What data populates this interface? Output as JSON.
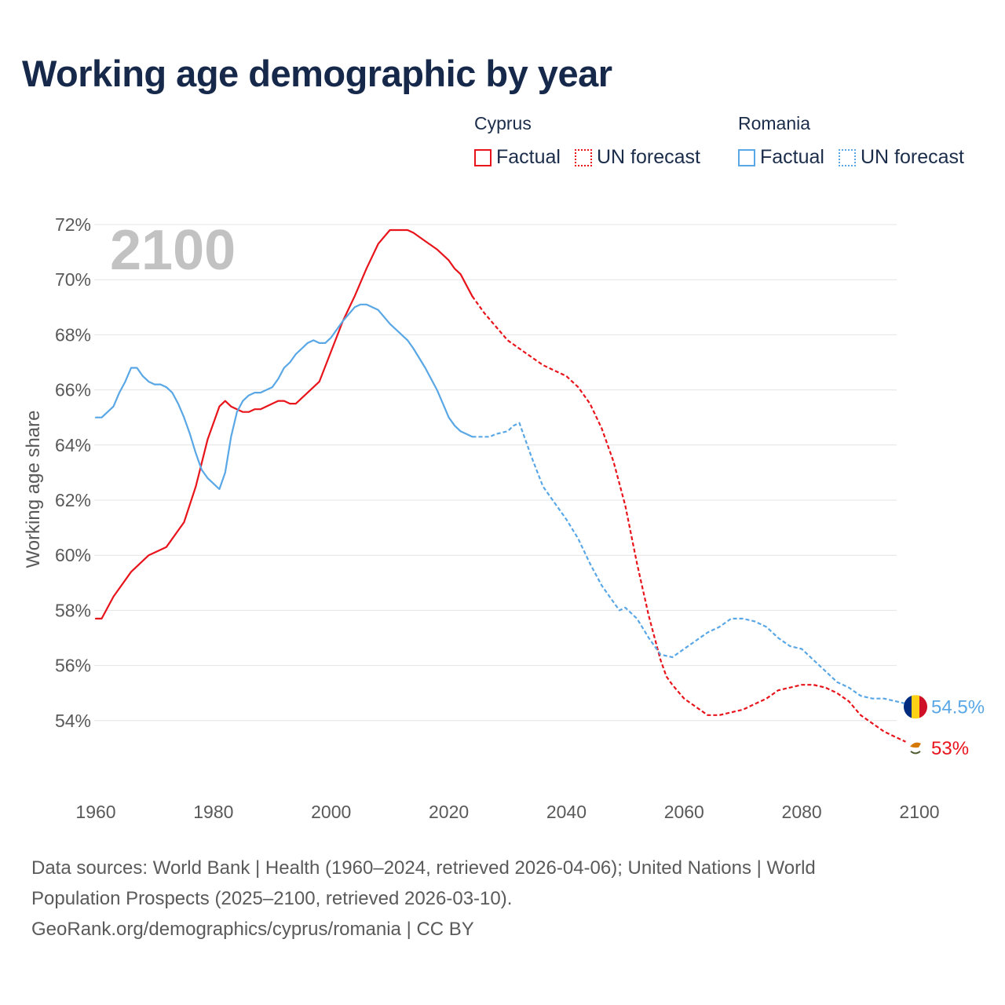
{
  "title": "Working age demographic by year",
  "legend": {
    "groups": [
      {
        "country": "Cyprus",
        "color": "#e8141b",
        "items": [
          {
            "label": "Factual",
            "style": "solid"
          },
          {
            "label": "UN forecast",
            "style": "dotted"
          }
        ]
      },
      {
        "country": "Romania",
        "color": "#5aa7e6",
        "items": [
          {
            "label": "Factual",
            "style": "solid"
          },
          {
            "label": "UN forecast",
            "style": "dotted"
          }
        ]
      }
    ]
  },
  "year_watermark": "2100",
  "footer": {
    "line1": "Data sources: World Bank | Health (1960–2024, retrieved 2026-04-06); United Nations | World",
    "line2": "Population Prospects (2025–2100, retrieved 2026-03-10).",
    "line3": "GeoRank.org/demographics/cyprus/romania | CC BY"
  },
  "chart_data": {
    "type": "line",
    "title": "Working age demographic by year",
    "xlabel": "",
    "ylabel": "Working age share",
    "xlim": [
      1960,
      2100
    ],
    "ylim": [
      52,
      72.4
    ],
    "x_ticks": [
      1960,
      1980,
      2000,
      2020,
      2040,
      2060,
      2080,
      2100
    ],
    "y_ticks": [
      54,
      56,
      58,
      60,
      62,
      64,
      66,
      68,
      70,
      72
    ],
    "y_tick_labels": [
      "54%",
      "56%",
      "58%",
      "60%",
      "62%",
      "64%",
      "66%",
      "68%",
      "70%",
      "72%"
    ],
    "grid": true,
    "factual_until": 2024,
    "series": [
      {
        "name": "Cyprus",
        "color": "#e8141b",
        "end_label": "53%",
        "x": [
          1960,
          1961,
          1963,
          1966,
          1969,
          1972,
          1975,
          1977,
          1979,
          1981,
          1982,
          1983,
          1985,
          1986,
          1987,
          1988,
          1990,
          1991,
          1992,
          1993,
          1994,
          1995,
          1998,
          2000,
          2002,
          2004,
          2006,
          2008,
          2010,
          2011,
          2013,
          2014,
          2016,
          2018,
          2019,
          2020,
          2021,
          2022,
          2024,
          2026,
          2028,
          2030,
          2032,
          2034,
          2036,
          2038,
          2040,
          2042,
          2044,
          2046,
          2048,
          2050,
          2052,
          2054,
          2056,
          2057,
          2058,
          2060,
          2062,
          2064,
          2066,
          2068,
          2070,
          2072,
          2074,
          2076,
          2078,
          2080,
          2082,
          2084,
          2086,
          2088,
          2090,
          2092,
          2094,
          2096,
          2098,
          2100
        ],
        "values": [
          57.7,
          57.7,
          58.5,
          59.4,
          60.0,
          60.3,
          61.2,
          62.5,
          64.2,
          65.4,
          65.6,
          65.4,
          65.2,
          65.2,
          65.3,
          65.3,
          65.5,
          65.6,
          65.6,
          65.5,
          65.5,
          65.7,
          66.3,
          67.4,
          68.5,
          69.4,
          70.4,
          71.3,
          71.8,
          71.8,
          71.8,
          71.7,
          71.4,
          71.1,
          70.9,
          70.7,
          70.4,
          70.2,
          69.4,
          68.8,
          68.3,
          67.8,
          67.5,
          67.2,
          66.9,
          66.7,
          66.5,
          66.1,
          65.5,
          64.6,
          63.4,
          61.8,
          59.7,
          57.8,
          56.2,
          55.6,
          55.3,
          54.8,
          54.5,
          54.2,
          54.2,
          54.3,
          54.4,
          54.6,
          54.8,
          55.1,
          55.2,
          55.3,
          55.3,
          55.2,
          55.0,
          54.7,
          54.2,
          53.9,
          53.6,
          53.4,
          53.2,
          53.0
        ]
      },
      {
        "name": "Romania",
        "color": "#5aa7e6",
        "end_label": "54.5%",
        "x": [
          1960,
          1961,
          1963,
          1964,
          1965,
          1966,
          1967,
          1968,
          1969,
          1970,
          1971,
          1972,
          1973,
          1974,
          1975,
          1976,
          1977,
          1978,
          1979,
          1980,
          1981,
          1982,
          1983,
          1984,
          1985,
          1986,
          1987,
          1988,
          1990,
          1991,
          1992,
          1993,
          1994,
          1995,
          1996,
          1997,
          1998,
          1999,
          2000,
          2002,
          2004,
          2005,
          2006,
          2008,
          2010,
          2012,
          2013,
          2014,
          2016,
          2017,
          2018,
          2019,
          2020,
          2021,
          2022,
          2024,
          2026,
          2027,
          2028,
          2030,
          2031,
          2032,
          2034,
          2036,
          2038,
          2040,
          2042,
          2044,
          2046,
          2048,
          2049,
          2050,
          2052,
          2054,
          2056,
          2058,
          2060,
          2062,
          2064,
          2066,
          2068,
          2070,
          2072,
          2074,
          2076,
          2078,
          2080,
          2082,
          2084,
          2086,
          2088,
          2090,
          2092,
          2094,
          2096,
          2098,
          2100
        ],
        "values": [
          65.0,
          65.0,
          65.4,
          65.9,
          66.3,
          66.8,
          66.8,
          66.5,
          66.3,
          66.2,
          66.2,
          66.1,
          65.9,
          65.5,
          65.0,
          64.4,
          63.7,
          63.1,
          62.8,
          62.6,
          62.4,
          63.0,
          64.3,
          65.2,
          65.6,
          65.8,
          65.9,
          65.9,
          66.1,
          66.4,
          66.8,
          67.0,
          67.3,
          67.5,
          67.7,
          67.8,
          67.7,
          67.7,
          67.9,
          68.5,
          69.0,
          69.1,
          69.1,
          68.9,
          68.4,
          68.0,
          67.8,
          67.5,
          66.8,
          66.4,
          66.0,
          65.5,
          65.0,
          64.7,
          64.5,
          64.3,
          64.3,
          64.3,
          64.4,
          64.5,
          64.7,
          64.8,
          63.6,
          62.5,
          61.9,
          61.3,
          60.6,
          59.7,
          58.9,
          58.3,
          58.0,
          58.1,
          57.7,
          57.0,
          56.4,
          56.3,
          56.6,
          56.9,
          57.2,
          57.4,
          57.7,
          57.7,
          57.6,
          57.4,
          57.0,
          56.7,
          56.6,
          56.2,
          55.8,
          55.4,
          55.2,
          54.9,
          54.8,
          54.8,
          54.7,
          54.6,
          54.5
        ]
      }
    ]
  }
}
